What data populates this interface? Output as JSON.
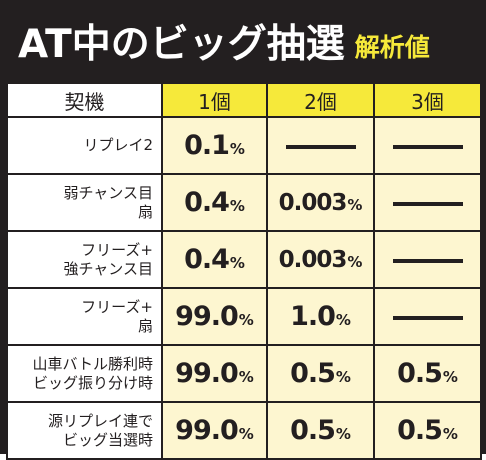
{
  "header": {
    "title": "AT中のビッグ抽選",
    "subtitle": "解析値"
  },
  "table": {
    "columns": [
      "契機",
      "1個",
      "2個",
      "3個"
    ],
    "rows": [
      {
        "trigger": [
          "リプレイ2"
        ],
        "v1": "0.1",
        "v2": null,
        "v3": null
      },
      {
        "trigger": [
          "弱チャンス目",
          "扇"
        ],
        "v1": "0.4",
        "v2": "0.003",
        "v3": null
      },
      {
        "trigger": [
          "フリーズ+",
          "強チャンス目"
        ],
        "v1": "0.4",
        "v2": "0.003",
        "v3": null
      },
      {
        "trigger": [
          "フリーズ+",
          "扇"
        ],
        "v1": "99.0",
        "v2": "1.0",
        "v3": null
      },
      {
        "trigger": [
          "山車バトル勝利時",
          "ビッグ振り分け時"
        ],
        "v1": "99.0",
        "v2": "0.5",
        "v3": "0.5"
      },
      {
        "trigger": [
          "源リプレイ連で",
          "ビッグ当選時"
        ],
        "v1": "99.0",
        "v2": "0.5",
        "v3": "0.5"
      }
    ],
    "unit": "%"
  },
  "colors": {
    "background": "#231f20",
    "accent_yellow": "#f6e93a",
    "cell_cream": "#fdf6d0"
  }
}
